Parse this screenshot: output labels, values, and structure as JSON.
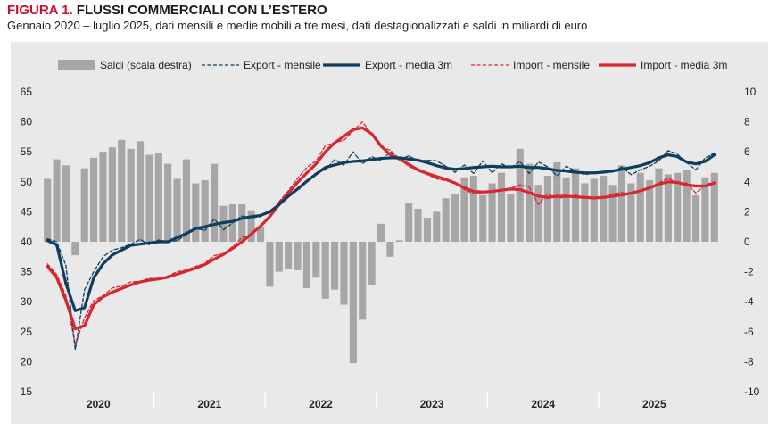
{
  "header": {
    "figure_label": "FIGURA 1.",
    "title": "FLUSSI COMMERCIALI CON L’ESTERO",
    "subtitle": "Gennaio 2020 – luglio 2025, dati mensili e medie mobili a tre mesi, dati destagionalizzati e saldi in miliardi di euro"
  },
  "chart_data": {
    "type": "bar",
    "x_labels": [
      "2020",
      "2021",
      "2022",
      "2023",
      "2024",
      "2025"
    ],
    "y_left": {
      "min": 15,
      "max": 65,
      "ticks": [
        65,
        60,
        55,
        50,
        45,
        40,
        35,
        30,
        25,
        20,
        15
      ]
    },
    "y_right": {
      "min": -10,
      "max": 10,
      "ticks": [
        10,
        8,
        6,
        4,
        2,
        0,
        -2,
        -4,
        -6,
        -8,
        -10
      ]
    },
    "grid": false,
    "legend_position": "top",
    "legend": [
      {
        "label": "Saldi (scala destra)",
        "style": "bar",
        "color": "#a6a6a6"
      },
      {
        "label": "Export - mensile",
        "style": "dashed",
        "color": "#0f3d5e"
      },
      {
        "label": "Export - media 3m",
        "style": "solid",
        "color": "#0f3d5e"
      },
      {
        "label": "Import - mensile",
        "style": "dashed",
        "color": "#d7262f"
      },
      {
        "label": "Import - media 3m",
        "style": "solid",
        "color": "#d7262f"
      }
    ],
    "series": [
      {
        "name": "Saldi (scala destra)",
        "axis": "right",
        "kind": "bar",
        "values": [
          4.2,
          5.5,
          5.1,
          -0.9,
          4.9,
          5.6,
          6.0,
          6.3,
          6.8,
          6.2,
          6.7,
          5.8,
          5.9,
          5.2,
          4.2,
          5.5,
          3.9,
          4.1,
          5.2,
          2.4,
          2.5,
          2.5,
          2.1,
          1.0,
          -3.0,
          -2.0,
          -1.8,
          -1.9,
          -3.1,
          -2.4,
          -3.8,
          -3.2,
          -4.2,
          -8.1,
          -5.2,
          -2.9,
          1.2,
          -1.0,
          0.1,
          2.6,
          2.2,
          1.6,
          2.0,
          2.9,
          3.2,
          4.3,
          4.4,
          3.1,
          3.9,
          4.6,
          3.2,
          6.2,
          5.2,
          3.8,
          4.4,
          5.3,
          4.3,
          4.9,
          3.9,
          4.2,
          4.4,
          3.8,
          5.1,
          3.9,
          4.6,
          4.1,
          4.9,
          4.5,
          4.6,
          4.8,
          3.1,
          4.3,
          4.6
        ]
      },
      {
        "name": "Export - mensile",
        "axis": "left",
        "kind": "line-dashed",
        "values": [
          40.5,
          40.0,
          36.0,
          22.0,
          32.0,
          35.0,
          37.5,
          38.6,
          39.0,
          39.6,
          40.4,
          39.5,
          40.3,
          40.0,
          40.2,
          41.2,
          42.2,
          41.9,
          43.8,
          42.0,
          43.2,
          44.3,
          44.0,
          44.2,
          45.0,
          46.0,
          47.6,
          48.9,
          50.0,
          51.5,
          52.0,
          53.7,
          52.8,
          55.0,
          53.0,
          54.2,
          53.5,
          55.0,
          53.8,
          54.3,
          53.5,
          53.6,
          53.5,
          52.6,
          51.6,
          52.8,
          51.4,
          53.5,
          51.5,
          53.0,
          52.3,
          53.4,
          51.4,
          53.3,
          52.5,
          51.0,
          52.6,
          51.8,
          51.2,
          51.5,
          51.8,
          51.6,
          52.5,
          51.2,
          52.0,
          52.6,
          53.5,
          55.2,
          54.6,
          53.2,
          52.0,
          54.0,
          54.8
        ]
      },
      {
        "name": "Export - media 3m",
        "axis": "left",
        "kind": "line",
        "values": [
          40.2,
          39.5,
          33.0,
          28.5,
          29.0,
          34.0,
          36.3,
          37.8,
          38.6,
          39.4,
          39.6,
          39.8,
          40.0,
          40.0,
          40.7,
          41.4,
          42.2,
          42.5,
          42.9,
          43.2,
          43.4,
          43.9,
          44.2,
          44.4,
          45.0,
          46.2,
          47.6,
          48.8,
          50.1,
          51.3,
          52.4,
          52.8,
          53.2,
          53.4,
          53.5,
          53.7,
          53.9,
          54.0,
          54.0,
          53.8,
          53.6,
          53.2,
          52.7,
          52.3,
          52.1,
          52.2,
          52.4,
          52.5,
          52.6,
          52.5,
          52.5,
          52.6,
          52.4,
          52.4,
          52.2,
          51.9,
          51.8,
          51.6,
          51.5,
          51.5,
          51.6,
          51.8,
          52.1,
          52.4,
          52.7,
          53.2,
          54.0,
          54.5,
          54.2,
          53.3,
          53.0,
          53.4,
          54.5
        ]
      },
      {
        "name": "Import - mensile",
        "axis": "left",
        "kind": "line-dashed",
        "values": [
          36.3,
          34.5,
          31.0,
          22.8,
          27.3,
          30.2,
          31.0,
          32.3,
          32.6,
          33.3,
          33.4,
          33.9,
          33.8,
          34.3,
          35.0,
          35.3,
          35.9,
          36.4,
          37.7,
          38.0,
          39.2,
          40.7,
          41.2,
          42.7,
          44.1,
          46.7,
          48.5,
          50.6,
          52.4,
          53.5,
          56.0,
          56.6,
          56.9,
          58.5,
          60.0,
          57.9,
          55.7,
          55.3,
          53.8,
          52.6,
          51.8,
          51.2,
          50.5,
          50.2,
          49.9,
          48.7,
          48.0,
          48.2,
          48.3,
          48.7,
          48.9,
          49.5,
          49.1,
          46.2,
          48.0,
          47.3,
          47.4,
          47.8,
          47.3,
          47.2,
          47.3,
          48.0,
          48.2,
          47.9,
          48.4,
          49.1,
          49.8,
          50.6,
          49.8,
          49.8,
          48.1,
          49.5,
          50.0
        ]
      },
      {
        "name": "Import - media 3m",
        "axis": "left",
        "kind": "line",
        "values": [
          35.9,
          34.0,
          30.2,
          25.5,
          26.0,
          29.5,
          30.8,
          31.6,
          32.2,
          32.8,
          33.3,
          33.6,
          33.8,
          34.1,
          34.6,
          35.1,
          35.6,
          36.2,
          37.1,
          37.9,
          38.9,
          40.0,
          41.3,
          42.6,
          44.2,
          46.2,
          48.1,
          49.9,
          51.5,
          53.0,
          55.0,
          56.5,
          57.6,
          58.7,
          59.0,
          58.0,
          56.0,
          54.5,
          53.8,
          52.9,
          52.0,
          51.4,
          50.9,
          50.4,
          49.8,
          49.0,
          48.4,
          48.3,
          48.4,
          48.6,
          48.8,
          48.7,
          48.2,
          47.6,
          47.4,
          47.6,
          47.6,
          47.5,
          47.4,
          47.3,
          47.4,
          47.6,
          47.8,
          48.1,
          48.5,
          49.0,
          49.6,
          50.0,
          49.9,
          49.5,
          49.3,
          49.3,
          49.8
        ]
      }
    ]
  }
}
